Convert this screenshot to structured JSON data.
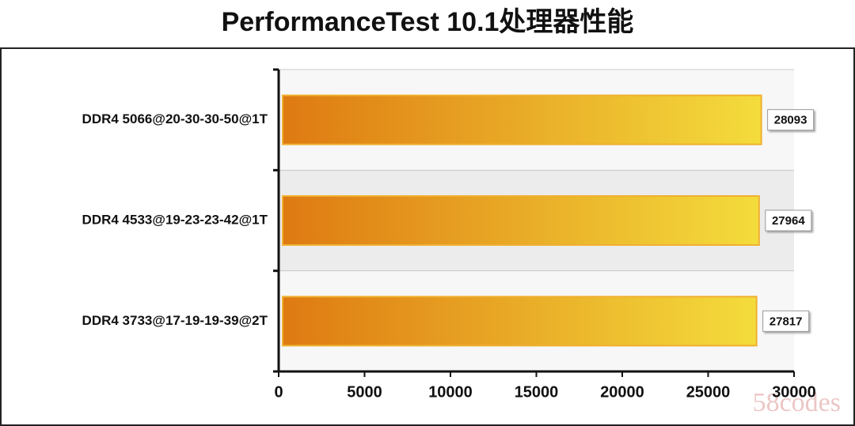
{
  "chart_data": {
    "type": "bar",
    "orientation": "horizontal",
    "title": "PerformanceTest 10.1处理器性能",
    "categories": [
      "DDR4 5066@20-30-30-50@1T",
      "DDR4 4533@19-23-23-42@1T",
      "DDR4 3733@17-19-19-39@2T"
    ],
    "values": [
      28093,
      27964,
      27817
    ],
    "color": [
      "#de7a12",
      "#f4dc3c"
    ],
    "xlim": [
      0,
      30000
    ],
    "xticks": [
      0,
      5000,
      10000,
      15000,
      20000,
      25000,
      30000
    ],
    "grid": true,
    "watermark": "58codes"
  }
}
